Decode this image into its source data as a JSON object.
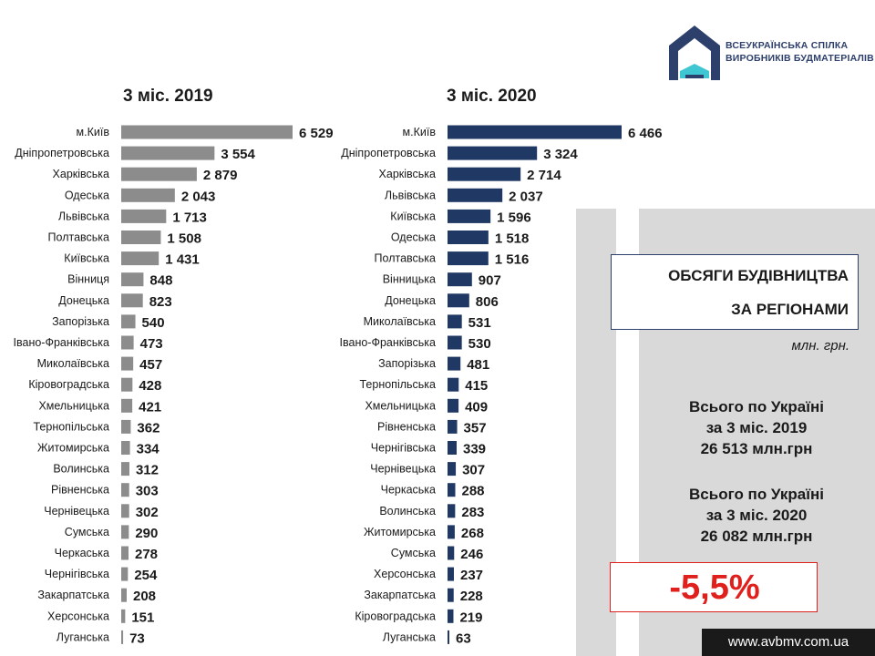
{
  "logo": {
    "line1": "ВСЕУКРАЇНСЬКА СПІЛКА",
    "line2": "ВИРОБНИКІВ БУДМАТЕРІАЛІВ",
    "brand_color": "#2d3f6b",
    "accent_color": "#3ec6d3"
  },
  "headline": {
    "line1": "ОБСЯГИ БУДІВНИЦТВА",
    "line2": "ЗА РЕГІОНАМИ"
  },
  "units": "млн. грн.",
  "totals": [
    {
      "line1": "Всього по Україні",
      "line2": "за 3 міс. 2019",
      "line3": "26 513 млн.грн"
    },
    {
      "line1": "Всього по Україні",
      "line2": "за 3 міс. 2020",
      "line3": "26 082 млн.грн"
    }
  ],
  "change": "-5,5%",
  "website": "www.avbmv.com.ua",
  "chart_data": [
    {
      "type": "bar",
      "orientation": "horizontal",
      "title": "3 міс. 2019",
      "color": "#8c8c8c",
      "categories": [
        "м.Київ",
        "Дніпропетровська",
        "Харківська",
        "Одеська",
        "Львівська",
        "Полтавська",
        "Київська",
        "Вінниця",
        "Донецька",
        "Запорізька",
        "Івано-Франківська",
        "Миколаївська",
        "Кіровоградська",
        "Хмельницька",
        "Тернопільська",
        "Житомирська",
        "Волинська",
        "Рівненська",
        "Чернівецька",
        "Сумська",
        "Черкаська",
        "Чернігівська",
        "Закарпатська",
        "Херсонська",
        "Луганська"
      ],
      "values": [
        6529,
        3554,
        2879,
        2043,
        1713,
        1508,
        1431,
        848,
        823,
        540,
        473,
        457,
        428,
        421,
        362,
        334,
        312,
        303,
        302,
        290,
        278,
        254,
        208,
        151,
        73
      ],
      "value_labels": [
        "6 529",
        "3 554",
        "2 879",
        "2 043",
        "1 713",
        "1 508",
        "1 431",
        "848",
        "823",
        "540",
        "473",
        "457",
        "428",
        "421",
        "362",
        "334",
        "312",
        "303",
        "302",
        "290",
        "278",
        "254",
        "208",
        "151",
        "73"
      ]
    },
    {
      "type": "bar",
      "orientation": "horizontal",
      "title": "3 міс. 2020",
      "color": "#1f3864",
      "categories": [
        "м.Київ",
        "Дніпропетровська",
        "Харківська",
        "Львівська",
        "Київська",
        "Одеська",
        "Полтавська",
        "Вінницька",
        "Донецька",
        "Миколаївська",
        "Івано-Франківська",
        "Запорізька",
        "Тернопільська",
        "Хмельницька",
        "Рівненська",
        "Чернігівська",
        "Чернівецька",
        "Черкаська",
        "Волинська",
        "Житомирська",
        "Сумська",
        "Херсонська",
        "Закарпатська",
        "Кіровоградська",
        "Луганська"
      ],
      "values": [
        6466,
        3324,
        2714,
        2037,
        1596,
        1518,
        1516,
        907,
        806,
        531,
        530,
        481,
        415,
        409,
        357,
        339,
        307,
        288,
        283,
        268,
        246,
        237,
        228,
        219,
        63
      ],
      "value_labels": [
        "6 466",
        "3 324",
        "2 714",
        "2 037",
        "1 596",
        "1 518",
        "1 516",
        "907",
        "806",
        "531",
        "530",
        "481",
        "415",
        "409",
        "357",
        "339",
        "307",
        "288",
        "283",
        "268",
        "246",
        "237",
        "228",
        "219",
        "63"
      ]
    }
  ]
}
